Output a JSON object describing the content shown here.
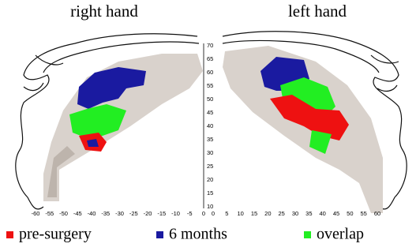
{
  "panels": [
    {
      "title": "right hand",
      "x_ticks": [
        -60,
        -55,
        -50,
        -45,
        -40,
        -35,
        -30,
        -25,
        -20,
        -15,
        -10,
        -5,
        0
      ]
    },
    {
      "title": "left hand",
      "x_ticks": [
        0,
        5,
        10,
        15,
        20,
        25,
        30,
        35,
        40,
        45,
        50,
        55,
        60
      ]
    }
  ],
  "y_ticks": [
    70,
    65,
    60,
    55,
    50,
    45,
    40,
    35,
    30,
    25,
    20,
    15,
    10
  ],
  "legend": [
    {
      "name": "pre-surgery",
      "color": "#ee1111"
    },
    {
      "name": "6 months",
      "color": "#1a1aa0"
    },
    {
      "name": "overlap",
      "color": "#22ee22"
    }
  ]
}
